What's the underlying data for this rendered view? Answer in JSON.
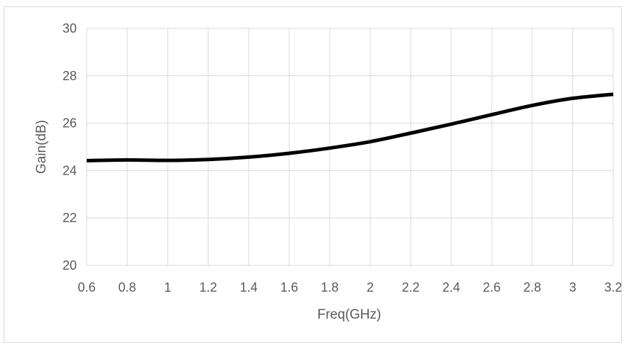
{
  "chart_data": {
    "type": "line",
    "title": "",
    "xlabel": "Freq(GHz)",
    "ylabel": "Gain(dB)",
    "xlim": [
      0.6,
      3.2
    ],
    "ylim": [
      20,
      30
    ],
    "x_ticks": [
      "0.6",
      "0.8",
      "1",
      "1.2",
      "1.4",
      "1.6",
      "1.8",
      "2",
      "2.2",
      "2.4",
      "2.6",
      "2.8",
      "3",
      "3.2"
    ],
    "y_ticks": [
      "20",
      "22",
      "24",
      "26",
      "28",
      "30"
    ],
    "grid": true,
    "legend": "none",
    "line_color": "#000000",
    "grid_color": "#d9d9d9",
    "series": [
      {
        "x": [
          0.6,
          0.8,
          1.0,
          1.2,
          1.4,
          1.6,
          1.8,
          2.0,
          2.2,
          2.4,
          2.6,
          2.8,
          3.0,
          3.2
        ],
        "y": [
          24.42,
          24.45,
          24.43,
          24.47,
          24.57,
          24.73,
          24.95,
          25.22,
          25.58,
          25.96,
          26.36,
          26.75,
          27.05,
          27.22
        ]
      }
    ]
  }
}
